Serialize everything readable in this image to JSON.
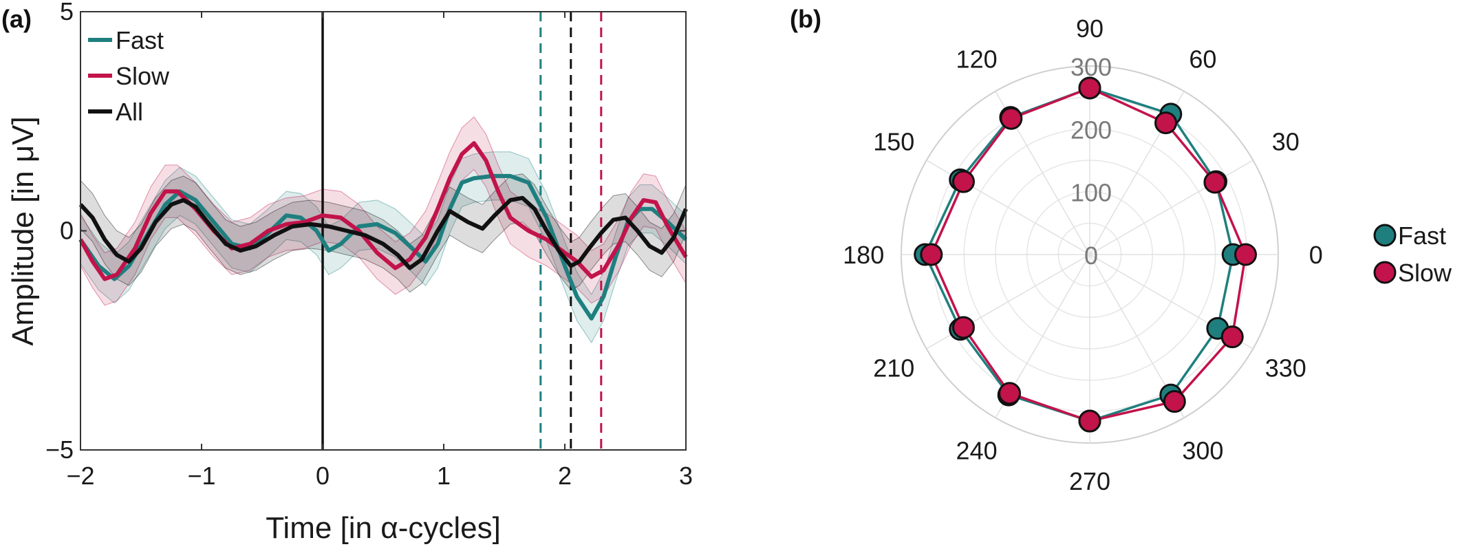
{
  "colors": {
    "fast": "#1f7f7f",
    "slow": "#c2134a",
    "all": "#111111",
    "grid": "#d9d9d9"
  },
  "chart_data": [
    {
      "type": "line",
      "panel_label": "(a)",
      "xlabel": "Time [in α-cycles]",
      "ylabel": "Amplitude [in μV]",
      "xlim": [
        -2,
        3
      ],
      "ylim": [
        -5,
        5
      ],
      "xticks": [
        "−2",
        "−1",
        "0",
        "1",
        "2",
        "3"
      ],
      "yticks": [
        "−5",
        "0",
        "5"
      ],
      "legend": {
        "placement": "top-left",
        "entries": [
          "Fast",
          "Slow",
          "All"
        ]
      },
      "series": [
        {
          "name": "Fast",
          "band": 0.55,
          "points": [
            [
              -2,
              -0.2
            ],
            [
              -1.85,
              -0.8
            ],
            [
              -1.72,
              -1.1
            ],
            [
              -1.6,
              -0.8
            ],
            [
              -1.45,
              -0.1
            ],
            [
              -1.3,
              0.6
            ],
            [
              -1.18,
              0.9
            ],
            [
              -1.05,
              0.7
            ],
            [
              -0.9,
              0.2
            ],
            [
              -0.75,
              -0.3
            ],
            [
              -0.6,
              -0.4
            ],
            [
              -0.45,
              -0.05
            ],
            [
              -0.3,
              0.35
            ],
            [
              -0.18,
              0.3
            ],
            [
              -0.05,
              0.0
            ],
            [
              0.05,
              -0.45
            ],
            [
              0.15,
              -0.3
            ],
            [
              0.3,
              0.1
            ],
            [
              0.45,
              0.15
            ],
            [
              0.6,
              -0.05
            ],
            [
              0.72,
              -0.35
            ],
            [
              0.85,
              -0.7
            ],
            [
              0.95,
              -0.3
            ],
            [
              1.05,
              0.5
            ],
            [
              1.15,
              1.1
            ],
            [
              1.25,
              1.2
            ],
            [
              1.4,
              1.25
            ],
            [
              1.55,
              1.25
            ],
            [
              1.7,
              1.1
            ],
            [
              1.85,
              0.3
            ],
            [
              2.0,
              -0.8
            ],
            [
              2.1,
              -1.5
            ],
            [
              2.22,
              -2.0
            ],
            [
              2.32,
              -1.5
            ],
            [
              2.42,
              -0.6
            ],
            [
              2.52,
              0.2
            ],
            [
              2.62,
              0.5
            ],
            [
              2.72,
              0.5
            ],
            [
              2.85,
              0.2
            ],
            [
              3.0,
              -0.2
            ]
          ]
        },
        {
          "name": "Slow",
          "band": 0.6,
          "points": [
            [
              -2,
              -0.2
            ],
            [
              -1.9,
              -0.7
            ],
            [
              -1.8,
              -1.1
            ],
            [
              -1.7,
              -1.0
            ],
            [
              -1.55,
              -0.4
            ],
            [
              -1.42,
              0.4
            ],
            [
              -1.3,
              0.9
            ],
            [
              -1.2,
              0.9
            ],
            [
              -1.05,
              0.5
            ],
            [
              -0.9,
              0.0
            ],
            [
              -0.75,
              -0.4
            ],
            [
              -0.6,
              -0.3
            ],
            [
              -0.45,
              0.0
            ],
            [
              -0.3,
              0.15
            ],
            [
              -0.15,
              0.2
            ],
            [
              0.0,
              0.35
            ],
            [
              0.15,
              0.3
            ],
            [
              0.3,
              0.0
            ],
            [
              0.45,
              -0.5
            ],
            [
              0.6,
              -0.85
            ],
            [
              0.72,
              -0.65
            ],
            [
              0.85,
              -0.15
            ],
            [
              0.95,
              0.5
            ],
            [
              1.05,
              1.2
            ],
            [
              1.15,
              1.75
            ],
            [
              1.25,
              2.0
            ],
            [
              1.35,
              1.6
            ],
            [
              1.45,
              0.9
            ],
            [
              1.55,
              0.3
            ],
            [
              1.7,
              0.0
            ],
            [
              1.85,
              -0.2
            ],
            [
              2.0,
              -0.5
            ],
            [
              2.1,
              -0.7
            ],
            [
              2.22,
              -1.05
            ],
            [
              2.32,
              -0.9
            ],
            [
              2.45,
              -0.3
            ],
            [
              2.55,
              0.3
            ],
            [
              2.65,
              0.7
            ],
            [
              2.75,
              0.65
            ],
            [
              2.85,
              0.1
            ],
            [
              3.0,
              -0.6
            ]
          ]
        },
        {
          "name": "All",
          "band": 0.55,
          "points": [
            [
              -2,
              0.6
            ],
            [
              -1.9,
              0.3
            ],
            [
              -1.8,
              -0.2
            ],
            [
              -1.7,
              -0.55
            ],
            [
              -1.6,
              -0.7
            ],
            [
              -1.5,
              -0.4
            ],
            [
              -1.38,
              0.2
            ],
            [
              -1.25,
              0.6
            ],
            [
              -1.15,
              0.7
            ],
            [
              -1.05,
              0.55
            ],
            [
              -0.95,
              0.2
            ],
            [
              -0.8,
              -0.3
            ],
            [
              -0.68,
              -0.45
            ],
            [
              -0.55,
              -0.35
            ],
            [
              -0.4,
              -0.1
            ],
            [
              -0.25,
              0.1
            ],
            [
              -0.1,
              0.15
            ],
            [
              0.05,
              0.1
            ],
            [
              0.2,
              0.0
            ],
            [
              0.35,
              -0.1
            ],
            [
              0.5,
              -0.3
            ],
            [
              0.62,
              -0.55
            ],
            [
              0.72,
              -0.85
            ],
            [
              0.82,
              -0.65
            ],
            [
              0.95,
              0.0
            ],
            [
              1.05,
              0.45
            ],
            [
              1.2,
              0.2
            ],
            [
              1.32,
              0.05
            ],
            [
              1.42,
              0.35
            ],
            [
              1.55,
              0.7
            ],
            [
              1.65,
              0.75
            ],
            [
              1.75,
              0.5
            ],
            [
              1.85,
              0.0
            ],
            [
              1.95,
              -0.45
            ],
            [
              2.05,
              -0.8
            ],
            [
              2.12,
              -0.7
            ],
            [
              2.2,
              -0.4
            ],
            [
              2.3,
              -0.05
            ],
            [
              2.4,
              0.25
            ],
            [
              2.5,
              0.3
            ],
            [
              2.6,
              0.0
            ],
            [
              2.7,
              -0.35
            ],
            [
              2.8,
              -0.5
            ],
            [
              2.9,
              -0.15
            ],
            [
              3.0,
              0.5
            ]
          ]
        }
      ],
      "vlines": [
        {
          "series": "All",
          "x": 0,
          "style": "solid"
        },
        {
          "series": "Fast",
          "x": 1.8,
          "style": "dashed"
        },
        {
          "series": "All",
          "x": 2.05,
          "style": "dashed"
        },
        {
          "series": "Slow",
          "x": 2.3,
          "style": "dashed"
        }
      ]
    },
    {
      "type": "polar",
      "panel_label": "(b)",
      "rlim": [
        0,
        300
      ],
      "rticks": [
        "0",
        "100",
        "200",
        "300"
      ],
      "angle_ticks": [
        "0",
        "30",
        "60",
        "90",
        "120",
        "150",
        "180",
        "210",
        "240",
        "270",
        "300",
        "330"
      ],
      "angles": [
        90,
        60,
        30,
        0,
        330,
        300,
        270,
        240,
        210,
        180,
        150,
        120
      ],
      "legend": {
        "placement": "right",
        "entries": [
          "Fast",
          "Slow"
        ]
      },
      "series": [
        {
          "name": "Fast",
          "values": [
            265,
            258,
            232,
            228,
            235,
            258,
            265,
            258,
            238,
            262,
            238,
            252
          ]
        },
        {
          "name": "Slow",
          "values": [
            265,
            242,
            230,
            248,
            262,
            270,
            265,
            255,
            232,
            252,
            232,
            250
          ]
        }
      ]
    }
  ]
}
